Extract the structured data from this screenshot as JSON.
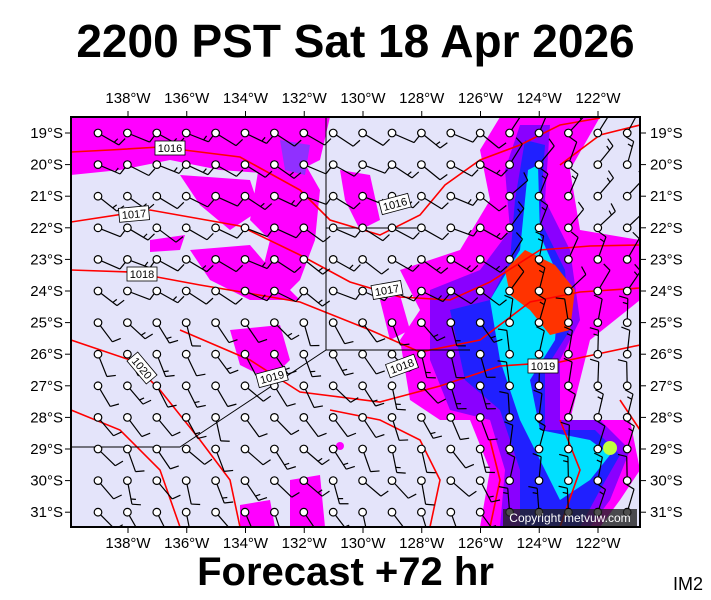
{
  "title": "2200 PST Sat 18 Apr 2026",
  "subtitle": "Forecast +72 hr",
  "image_code": "IM2",
  "copyright": "Copyright metvuw.com",
  "lon_labels": [
    "138°W",
    "136°W",
    "134°W",
    "132°W",
    "130°W",
    "128°W",
    "126°W",
    "124°W",
    "122°W"
  ],
  "lat_labels": [
    "19°S",
    "20°S",
    "21°S",
    "22°S",
    "23°S",
    "24°S",
    "25°S",
    "26°S",
    "27°S",
    "28°S",
    "29°S",
    "30°S",
    "31°S"
  ],
  "isobar_labels": [
    "1016",
    "1016",
    "1017",
    "1017",
    "1018",
    "1018",
    "1019",
    "1019",
    "1020"
  ],
  "colors": {
    "background": "#e4e4fa",
    "light_rain": "#ff00ff",
    "moderate": "#8a00ff",
    "heavy": "#2020ff",
    "very_heavy": "#00e0ff",
    "extreme": "#ff3300",
    "isobar": "#ff0000"
  }
}
